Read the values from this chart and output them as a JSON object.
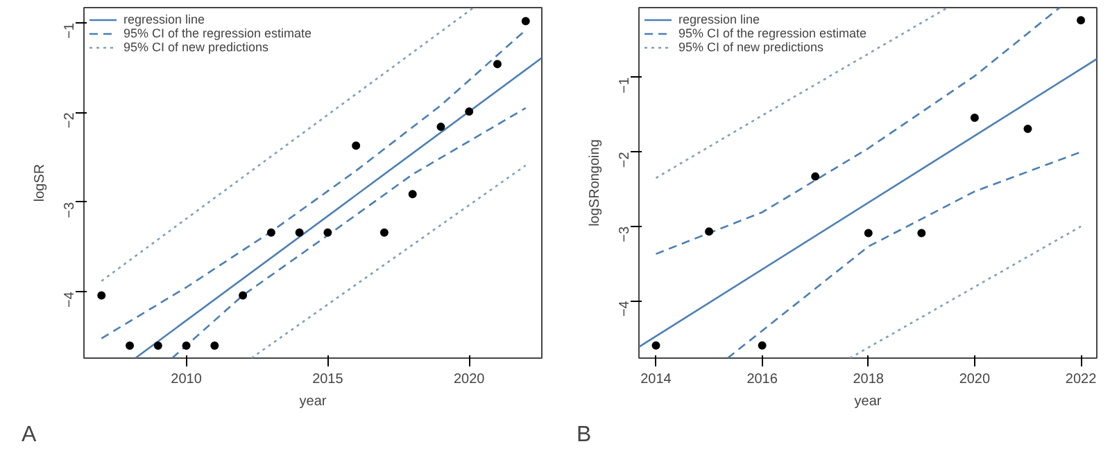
{
  "chart_data": [
    {
      "type": "line",
      "xlabel": "year",
      "ylabel": "logSR",
      "annotations": [
        "A"
      ],
      "xlim": [
        2006.38,
        2022.57
      ],
      "ylim": [
        -4.74,
        -0.83
      ],
      "xticks": [
        2010,
        2015,
        2020
      ],
      "yticks": [
        -4,
        -3,
        -2,
        -1
      ],
      "grid": false,
      "legend": "top left",
      "x": [
        2007,
        2008,
        2009,
        2010,
        2011,
        2012,
        2013,
        2014,
        2015,
        2016,
        2017,
        2018,
        2019,
        2020,
        2021,
        2022
      ],
      "series": [
        {
          "name": "regression line",
          "color": "#4a7fb5",
          "line_style": "solid",
          "x": [
            2008.2,
            2022.57
          ],
          "values": [
            -4.74,
            -1.39
          ]
        },
        {
          "name": "95% CI of the regression estimate",
          "color": "#4a7fb5",
          "line_style": "dashed",
          "x": [
            2007,
            2010,
            2013,
            2016,
            2019,
            2022
          ],
          "values": [
            -4.52,
            -3.95,
            -3.33,
            -2.65,
            -1.92,
            -1.08
          ]
        },
        {
          "name": "95% CI of new predictions",
          "color": "#7f9fb5",
          "line_style": "dotted",
          "x": [
            2007,
            2020.16
          ],
          "values": [
            -3.88,
            -0.83
          ]
        },
        {
          "color": "#4a7fb5",
          "line_style": "dashed",
          "x": [
            2009.5,
            2012,
            2015,
            2018,
            2022
          ],
          "values": [
            -4.74,
            -4.04,
            -3.37,
            -2.69,
            -1.95
          ]
        },
        {
          "color": "#7f9fb5",
          "line_style": "dotted",
          "x": [
            2012.3,
            2022
          ],
          "values": [
            -4.74,
            -2.59
          ]
        },
        {
          "type": "scatter",
          "marker": "circle",
          "color": "#000000",
          "values": [
            -4.04,
            -4.6,
            -4.6,
            -4.6,
            -4.6,
            -4.04,
            -3.34,
            -3.34,
            -3.34,
            -2.37,
            -3.34,
            -2.91,
            -2.16,
            -1.99,
            -1.46,
            -0.98
          ]
        }
      ]
    },
    {
      "type": "line",
      "xlabel": "year",
      "ylabel": "logSRongoing",
      "annotations": [
        "B"
      ],
      "xlim": [
        2013.68,
        2022.3
      ],
      "ylim": [
        -4.77,
        -0.06
      ],
      "xticks": [
        2014,
        2016,
        2018,
        2020,
        2022
      ],
      "yticks": [
        -4,
        -3,
        -2,
        -1
      ],
      "grid": false,
      "legend": "top left",
      "x": [
        2014,
        2015,
        2016,
        2017,
        2018,
        2019,
        2020,
        2021,
        2022
      ],
      "series": [
        {
          "name": "regression line",
          "color": "#4a7fb5",
          "line_style": "solid",
          "x": [
            2013.68,
            2022.3
          ],
          "values": [
            -4.62,
            -0.75
          ]
        },
        {
          "name": "95% CI of the regression estimate",
          "color": "#4a7fb5",
          "line_style": "dashed",
          "x": [
            2014,
            2016,
            2018,
            2020,
            2021.6
          ],
          "values": [
            -3.37,
            -2.81,
            -1.95,
            -0.98,
            -0.06
          ]
        },
        {
          "name": "95% CI of new predictions",
          "color": "#7f9fb5",
          "line_style": "dotted",
          "x": [
            2014,
            2016,
            2019.49
          ],
          "values": [
            -2.35,
            -1.51,
            -0.06
          ]
        },
        {
          "color": "#4a7fb5",
          "line_style": "dashed",
          "x": [
            2015.35,
            2018,
            2020,
            2022
          ],
          "values": [
            -4.77,
            -3.27,
            -2.53,
            -2.0
          ]
        },
        {
          "color": "#7f9fb5",
          "line_style": "dotted",
          "x": [
            2017.65,
            2022
          ],
          "values": [
            -4.77,
            -3.0
          ]
        },
        {
          "type": "scatter",
          "marker": "circle",
          "color": "#000000",
          "values": [
            -4.6,
            -3.07,
            -4.6,
            -2.33,
            -3.09,
            -3.09,
            -1.54,
            -1.69,
            -0.23
          ]
        }
      ]
    }
  ]
}
